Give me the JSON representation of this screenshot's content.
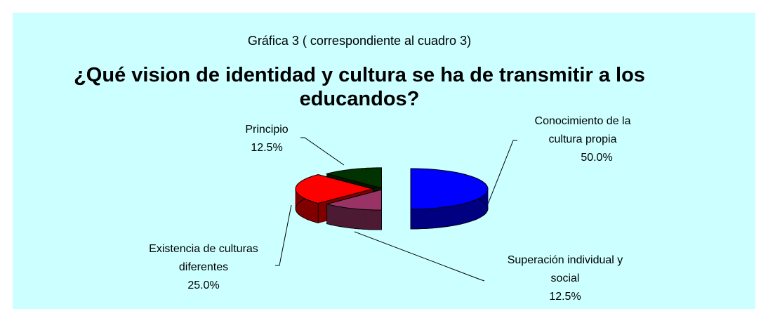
{
  "chart_data": {
    "type": "pie",
    "subtitle": "Gráfica 3 ( correspondiente al cuadro 3)",
    "title": "¿Qué vision de identidad y cultura se ha de transmitir a los educandos?",
    "categories": [
      "Conocimiento de la cultura propia",
      "Superación individual y social",
      "Existencia de culturas diferentes",
      "Principio"
    ],
    "values": [
      50.0,
      12.5,
      25.0,
      12.5
    ],
    "value_labels": [
      "50.0%",
      "12.5%",
      "25.0%",
      "12.5%"
    ],
    "colors": [
      "#0000ff",
      "#993366",
      "#ff0000",
      "#003300"
    ]
  }
}
